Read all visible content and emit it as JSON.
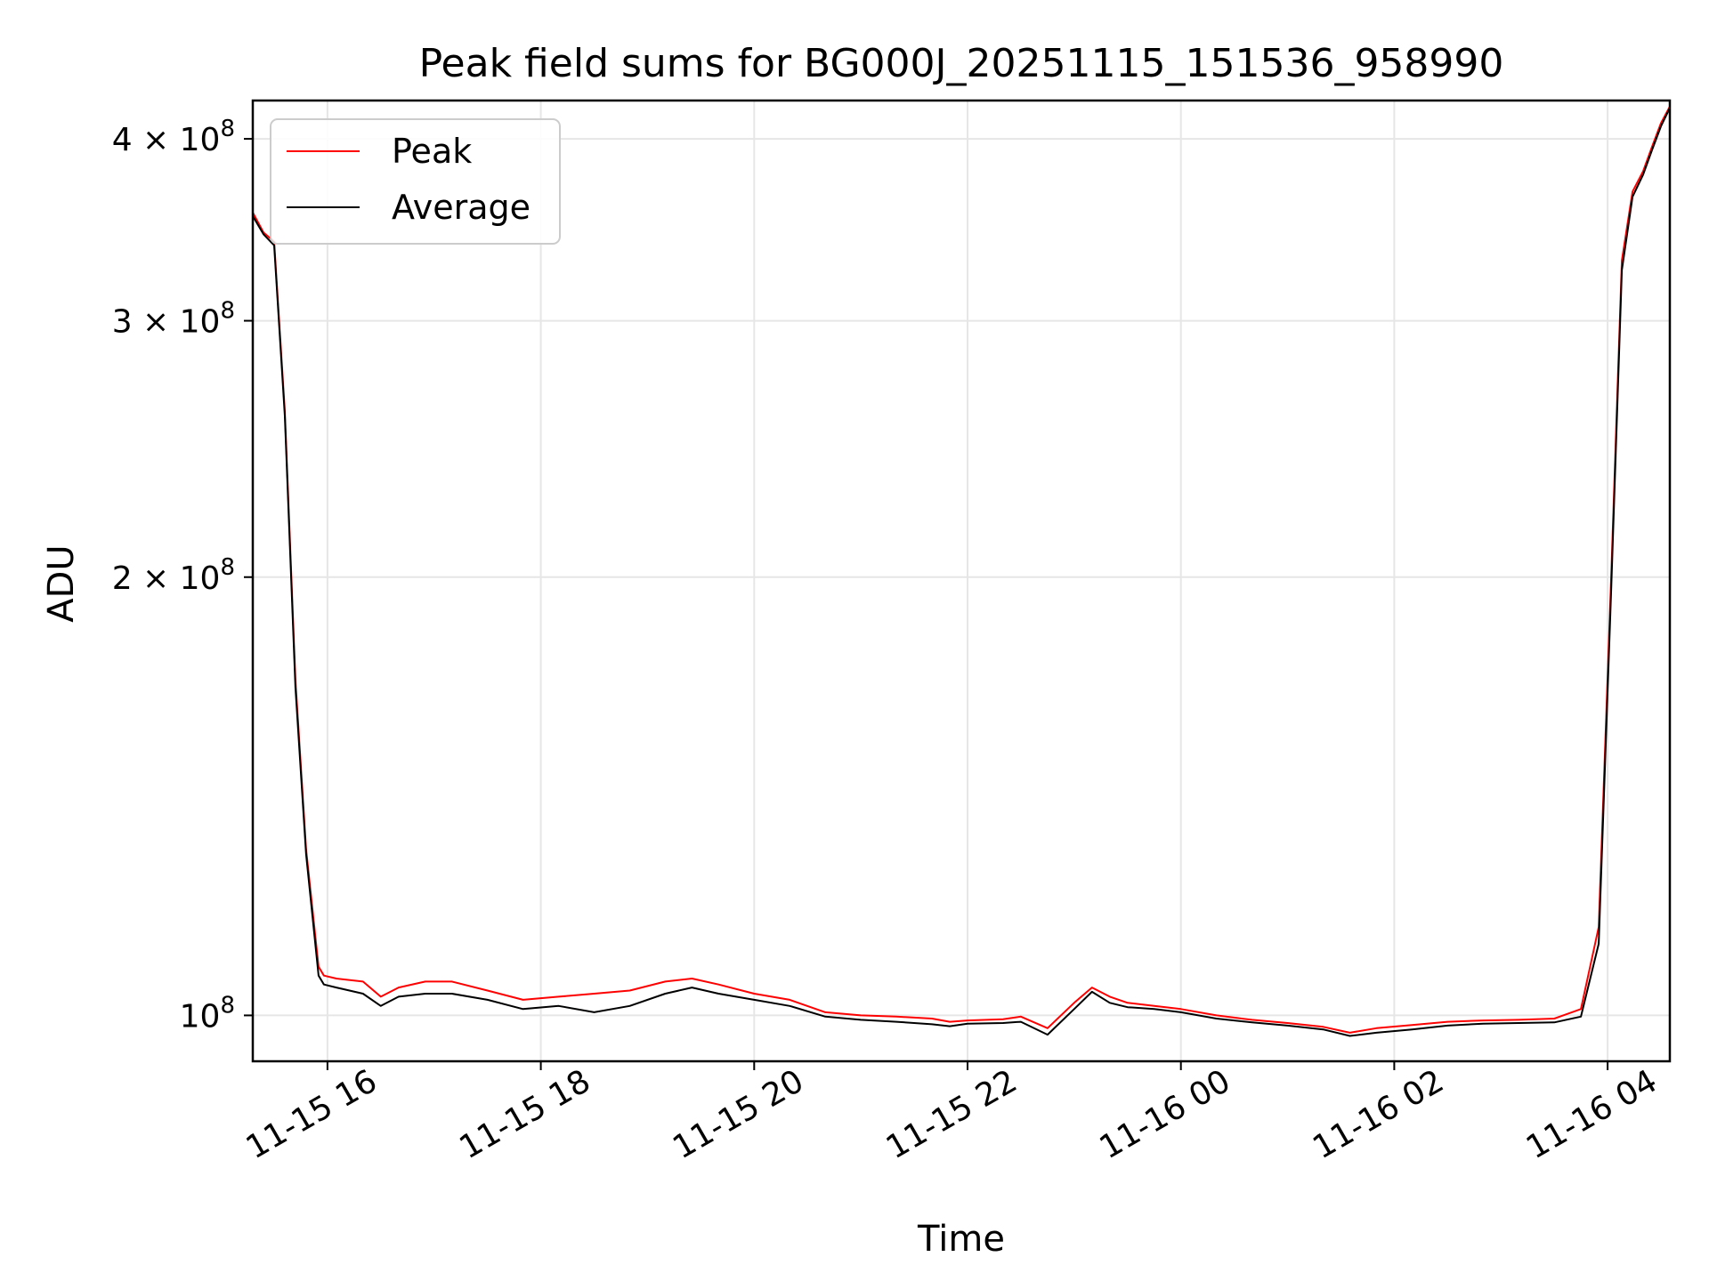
{
  "chart_data": {
    "type": "line",
    "title": "Peak field sums for BG000J_20251115_151536_958990",
    "xlabel": "Time",
    "ylabel": "ADU",
    "yscale": "log",
    "xlim": [
      "2025-11-15T15:18",
      "2025-11-16T04:35"
    ],
    "ylim": [
      93000000,
      425000000
    ],
    "grid": true,
    "legend_position": "upper left",
    "x_ticks": [
      {
        "value": "2025-11-15T16:00",
        "label": "11-15 16"
      },
      {
        "value": "2025-11-15T18:00",
        "label": "11-15 18"
      },
      {
        "value": "2025-11-15T20:00",
        "label": "11-15 20"
      },
      {
        "value": "2025-11-15T22:00",
        "label": "11-15 22"
      },
      {
        "value": "2025-11-16T00:00",
        "label": "11-16 00"
      },
      {
        "value": "2025-11-16T02:00",
        "label": "11-16 02"
      },
      {
        "value": "2025-11-16T04:00",
        "label": "11-16 04"
      }
    ],
    "y_ticks": [
      {
        "value": 100000000,
        "base": "10",
        "exp": "8"
      },
      {
        "value": 200000000,
        "base": "2 × 10",
        "exp": "8"
      },
      {
        "value": 300000000,
        "base": "3 × 10",
        "exp": "8"
      },
      {
        "value": 400000000,
        "base": "4 × 10",
        "exp": "8"
      }
    ],
    "series": [
      {
        "name": "Peak",
        "color": "#ff0000",
        "x": [
          "2025-11-15T15:18",
          "2025-11-15T15:24",
          "2025-11-15T15:30",
          "2025-11-15T15:36",
          "2025-11-15T15:42",
          "2025-11-15T15:48",
          "2025-11-15T15:55",
          "2025-11-15T15:58",
          "2025-11-15T16:05",
          "2025-11-15T16:20",
          "2025-11-15T16:30",
          "2025-11-15T16:40",
          "2025-11-15T16:55",
          "2025-11-15T17:10",
          "2025-11-15T17:30",
          "2025-11-15T17:50",
          "2025-11-15T18:10",
          "2025-11-15T18:30",
          "2025-11-15T18:50",
          "2025-11-15T19:10",
          "2025-11-15T19:25",
          "2025-11-15T19:40",
          "2025-11-15T20:00",
          "2025-11-15T20:20",
          "2025-11-15T20:40",
          "2025-11-15T21:00",
          "2025-11-15T21:20",
          "2025-11-15T21:40",
          "2025-11-15T21:50",
          "2025-11-15T22:00",
          "2025-11-15T22:20",
          "2025-11-15T22:30",
          "2025-11-15T22:45",
          "2025-11-15T23:00",
          "2025-11-15T23:10",
          "2025-11-15T23:20",
          "2025-11-15T23:30",
          "2025-11-15T23:45",
          "2025-11-16T00:00",
          "2025-11-16T00:20",
          "2025-11-16T00:40",
          "2025-11-16T01:00",
          "2025-11-16T01:20",
          "2025-11-16T01:35",
          "2025-11-16T01:50",
          "2025-11-16T02:10",
          "2025-11-16T02:30",
          "2025-11-16T02:50",
          "2025-11-16T03:10",
          "2025-11-16T03:30",
          "2025-11-16T03:45",
          "2025-11-16T03:55",
          "2025-11-16T04:02",
          "2025-11-16T04:08",
          "2025-11-16T04:14",
          "2025-11-16T04:20",
          "2025-11-16T04:25",
          "2025-11-16T04:30",
          "2025-11-16T04:35"
        ],
        "y": [
          356000000,
          345000000,
          340000000,
          260000000,
          170000000,
          130000000,
          108000000,
          106500000,
          106000000,
          105500000,
          103000000,
          104500000,
          105500000,
          105500000,
          104000000,
          102500000,
          103000000,
          103500000,
          104000000,
          105500000,
          106000000,
          105000000,
          103500000,
          102500000,
          100500000,
          100000000,
          99800000,
          99500000,
          99000000,
          99200000,
          99400000,
          99800000,
          98000000,
          102000000,
          104500000,
          103000000,
          102000000,
          101500000,
          101000000,
          100000000,
          99300000,
          98800000,
          98200000,
          97300000,
          98000000,
          98500000,
          99000000,
          99200000,
          99300000,
          99500000,
          101000000,
          115000000,
          200000000,
          330000000,
          368000000,
          380000000,
          395000000,
          410000000,
          421000000
        ]
      },
      {
        "name": "Average",
        "color": "#000000",
        "x": [
          "2025-11-15T15:18",
          "2025-11-15T15:24",
          "2025-11-15T15:30",
          "2025-11-15T15:36",
          "2025-11-15T15:42",
          "2025-11-15T15:48",
          "2025-11-15T15:55",
          "2025-11-15T15:58",
          "2025-11-15T16:05",
          "2025-11-15T16:20",
          "2025-11-15T16:30",
          "2025-11-15T16:40",
          "2025-11-15T16:55",
          "2025-11-15T17:10",
          "2025-11-15T17:30",
          "2025-11-15T17:50",
          "2025-11-15T18:10",
          "2025-11-15T18:30",
          "2025-11-15T18:50",
          "2025-11-15T19:10",
          "2025-11-15T19:25",
          "2025-11-15T19:40",
          "2025-11-15T20:00",
          "2025-11-15T20:20",
          "2025-11-15T20:40",
          "2025-11-15T21:00",
          "2025-11-15T21:20",
          "2025-11-15T21:40",
          "2025-11-15T21:50",
          "2025-11-15T22:00",
          "2025-11-15T22:20",
          "2025-11-15T22:30",
          "2025-11-15T22:45",
          "2025-11-15T23:00",
          "2025-11-15T23:10",
          "2025-11-15T23:20",
          "2025-11-15T23:30",
          "2025-11-15T23:45",
          "2025-11-16T00:00",
          "2025-11-16T00:20",
          "2025-11-16T00:40",
          "2025-11-16T01:00",
          "2025-11-16T01:20",
          "2025-11-16T01:35",
          "2025-11-16T01:50",
          "2025-11-16T02:10",
          "2025-11-16T02:30",
          "2025-11-16T02:50",
          "2025-11-16T03:10",
          "2025-11-16T03:30",
          "2025-11-16T03:45",
          "2025-11-16T03:55",
          "2025-11-16T04:02",
          "2025-11-16T04:08",
          "2025-11-16T04:14",
          "2025-11-16T04:20",
          "2025-11-16T04:25",
          "2025-11-16T04:30",
          "2025-11-16T04:35"
        ],
        "y": [
          354000000,
          344000000,
          338000000,
          258000000,
          168000000,
          129000000,
          106500000,
          105000000,
          104500000,
          103500000,
          101500000,
          103000000,
          103500000,
          103500000,
          102500000,
          101000000,
          101500000,
          100500000,
          101500000,
          103500000,
          104500000,
          103500000,
          102500000,
          101500000,
          99800000,
          99300000,
          99000000,
          98600000,
          98300000,
          98700000,
          98800000,
          99000000,
          97000000,
          101000000,
          103800000,
          102000000,
          101300000,
          101000000,
          100500000,
          99500000,
          98900000,
          98400000,
          97800000,
          96800000,
          97300000,
          97800000,
          98400000,
          98700000,
          98800000,
          98900000,
          99800000,
          112000000,
          196000000,
          325000000,
          365000000,
          378000000,
          393000000,
          408000000,
          420000000
        ]
      }
    ]
  }
}
